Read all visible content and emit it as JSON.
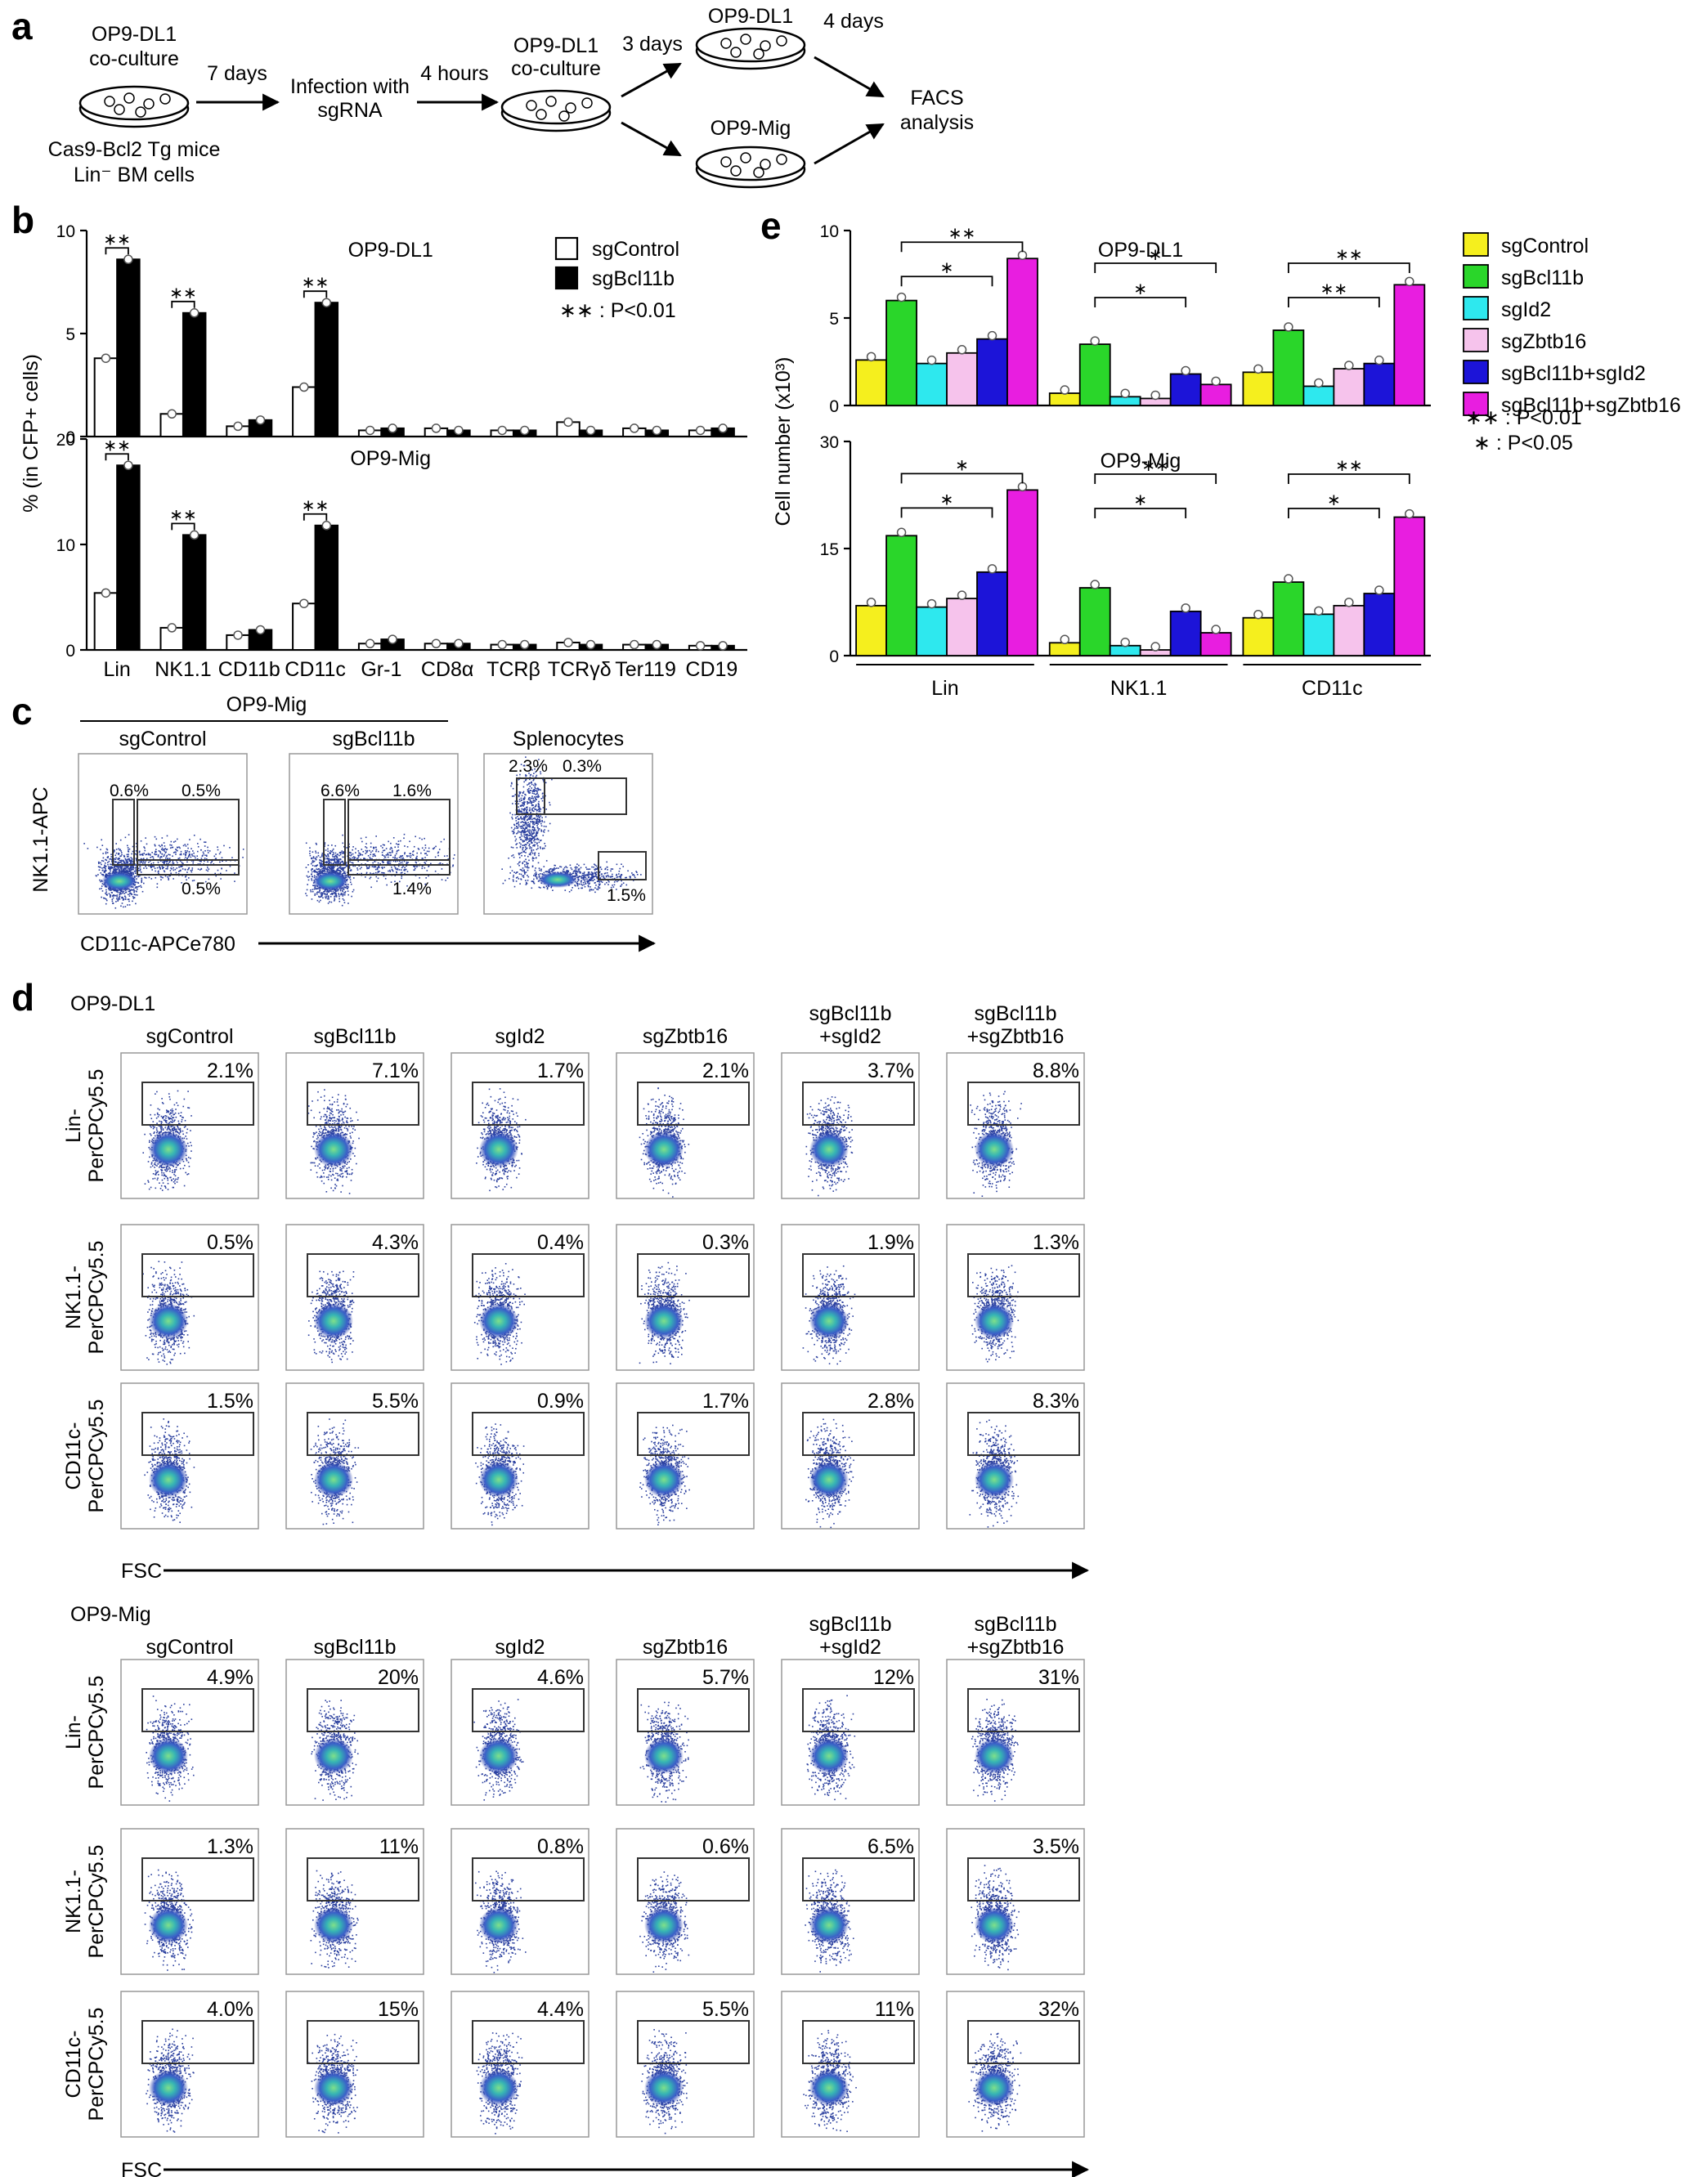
{
  "panel_a": {
    "label": "a",
    "dish1_top": [
      "OP9-DL1",
      "co-culture"
    ],
    "dish1_bottom": [
      "Cas9-Bcl2 Tg mice",
      "Lin⁻ BM cells"
    ],
    "step1": "7 days",
    "step2": [
      "Infection with",
      "sgRNA"
    ],
    "step3": "4 hours",
    "dish2_top": [
      "OP9-DL1",
      "co-culture"
    ],
    "step4": "3 days",
    "dish3_top": "OP9-DL1",
    "step5": "4 days",
    "dish4_top": "OP9-Mig",
    "final": [
      "FACS",
      "analysis"
    ]
  },
  "panel_b": {
    "label": "b",
    "ylabel": "% (in CFP+ cells)",
    "legend": [
      "sgControl",
      "sgBcl11b"
    ],
    "sig_note": "∗∗ : P<0.01",
    "colors": {
      "sgControl": "#ffffff",
      "sgBcl11b": "#000000"
    }
  },
  "panel_c": {
    "label": "c",
    "group_title": "OP9-Mig",
    "plots": [
      {
        "title": "sgControl",
        "percents": [
          "0.6%",
          "0.5%",
          "0.5%"
        ]
      },
      {
        "title": "sgBcl11b",
        "percents": [
          "6.6%",
          "1.6%",
          "1.4%"
        ]
      },
      {
        "title": "Splenocytes",
        "percents": [
          "2.3%",
          "0.3%",
          "1.5%"
        ]
      }
    ],
    "ylabel": "NK1.1-APC",
    "xlabel": "CD11c-APCe780"
  },
  "panel_d": {
    "label": "d",
    "columns": [
      [
        "sgControl"
      ],
      [
        "sgBcl11b"
      ],
      [
        "sgId2"
      ],
      [
        "sgZbtb16"
      ],
      [
        "sgBcl11b",
        "+sgId2"
      ],
      [
        "sgBcl11b",
        "+sgZbtb16"
      ]
    ],
    "row_labels": [
      [
        "Lin-",
        "PerCPCy5.5"
      ],
      [
        "NK1.1-",
        "PerCPCy5.5"
      ],
      [
        "CD11c-",
        "PerCPCy5.5"
      ]
    ],
    "xlabel": "FSC",
    "sections": [
      {
        "title": "OP9-DL1",
        "values": [
          [
            "2.1%",
            "7.1%",
            "1.7%",
            "2.1%",
            "3.7%",
            "8.8%"
          ],
          [
            "0.5%",
            "4.3%",
            "0.4%",
            "0.3%",
            "1.9%",
            "1.3%"
          ],
          [
            "1.5%",
            "5.5%",
            "0.9%",
            "1.7%",
            "2.8%",
            "8.3%"
          ]
        ]
      },
      {
        "title": "OP9-Mig",
        "values": [
          [
            "4.9%",
            "20%",
            "4.6%",
            "5.7%",
            "12%",
            "31%"
          ],
          [
            "1.3%",
            "11%",
            "0.8%",
            "0.6%",
            "6.5%",
            "3.5%"
          ],
          [
            "4.0%",
            "15%",
            "4.4%",
            "5.5%",
            "11%",
            "32%"
          ]
        ]
      }
    ]
  },
  "panel_e": {
    "label": "e",
    "ylabel": "Cell number (x10³)",
    "legend": [
      "sgControl",
      "sgBcl11b",
      "sgId2",
      "sgZbtb16",
      "sgBcl11b+sgId2",
      "sgBcl11b+sgZbtb16"
    ],
    "colors": [
      "#f5ef1e",
      "#2ad62a",
      "#2ee8ee",
      "#f6c3ec",
      "#1c14d8",
      "#e81ee0"
    ],
    "sig_notes": [
      "∗∗ : P<0.01",
      "∗ : P<0.05"
    ]
  },
  "chart_data": [
    {
      "id": "b_top",
      "type": "bar",
      "title": "OP9-DL1",
      "ylabel": "% (in CFP+ cells)",
      "categories": [
        "Lin",
        "NK1.1",
        "CD11b",
        "CD11c",
        "Gr-1",
        "CD8α",
        "TCRβ",
        "TCRγδ",
        "Ter119",
        "CD19"
      ],
      "ylim": [
        0,
        10
      ],
      "yticks": [
        0,
        5,
        10
      ],
      "series": [
        {
          "name": "sgControl",
          "values": [
            3.8,
            1.1,
            0.5,
            2.4,
            0.3,
            0.4,
            0.3,
            0.7,
            0.4,
            0.3
          ]
        },
        {
          "name": "sgBcl11b",
          "values": [
            8.6,
            6.0,
            0.8,
            6.5,
            0.4,
            0.3,
            0.3,
            0.3,
            0.3,
            0.4
          ]
        }
      ],
      "annotations": [
        {
          "category": "Lin",
          "text": "∗∗"
        },
        {
          "category": "NK1.1",
          "text": "∗∗"
        },
        {
          "category": "CD11c",
          "text": "∗∗"
        }
      ]
    },
    {
      "id": "b_bottom",
      "type": "bar",
      "title": "OP9-Mig",
      "ylabel": "% (in CFP+ cells)",
      "categories": [
        "Lin",
        "NK1.1",
        "CD11b",
        "CD11c",
        "Gr-1",
        "CD8α",
        "TCRβ",
        "TCRγδ",
        "Ter119",
        "CD19"
      ],
      "ylim": [
        0,
        20
      ],
      "yticks": [
        0,
        10,
        20
      ],
      "series": [
        {
          "name": "sgControl",
          "values": [
            5.4,
            2.1,
            1.4,
            4.4,
            0.6,
            0.6,
            0.5,
            0.7,
            0.5,
            0.4
          ]
        },
        {
          "name": "sgBcl11b",
          "values": [
            17.5,
            10.9,
            1.9,
            11.8,
            1.0,
            0.6,
            0.5,
            0.5,
            0.5,
            0.4
          ]
        }
      ],
      "annotations": [
        {
          "category": "Lin",
          "text": "∗∗"
        },
        {
          "category": "NK1.1",
          "text": "∗∗"
        },
        {
          "category": "CD11c",
          "text": "∗∗"
        }
      ]
    },
    {
      "id": "e_top",
      "type": "bar",
      "title": "OP9-DL1",
      "ylabel": "Cell number (x10³)",
      "categories": [
        "Lin",
        "NK1.1",
        "CD11c"
      ],
      "ylim": [
        0,
        10
      ],
      "yticks": [
        0,
        5,
        10
      ],
      "series": [
        {
          "name": "sgControl",
          "values": [
            2.6,
            0.7,
            1.9
          ]
        },
        {
          "name": "sgBcl11b",
          "values": [
            6.0,
            3.5,
            4.3
          ]
        },
        {
          "name": "sgId2",
          "values": [
            2.4,
            0.5,
            1.1
          ]
        },
        {
          "name": "sgZbtb16",
          "values": [
            3.0,
            0.4,
            2.1
          ]
        },
        {
          "name": "sgBcl11b+sgId2",
          "values": [
            3.8,
            1.8,
            2.4
          ]
        },
        {
          "name": "sgBcl11b+sgZbtb16",
          "values": [
            8.4,
            1.2,
            6.9
          ]
        }
      ],
      "annotations": [
        {
          "category": "Lin",
          "from": "sgBcl11b",
          "to": "sgBcl11b+sgZbtb16",
          "text": "∗∗"
        },
        {
          "category": "Lin",
          "from": "sgBcl11b",
          "to": "sgBcl11b+sgId2",
          "text": "∗"
        },
        {
          "category": "NK1.1",
          "from": "sgBcl11b",
          "to": "sgBcl11b+sgZbtb16",
          "text": "∗"
        },
        {
          "category": "NK1.1",
          "from": "sgBcl11b",
          "to": "sgBcl11b+sgId2",
          "text": "∗"
        },
        {
          "category": "CD11c",
          "from": "sgBcl11b",
          "to": "sgBcl11b+sgZbtb16",
          "text": "∗∗"
        },
        {
          "category": "CD11c",
          "from": "sgBcl11b",
          "to": "sgBcl11b+sgId2",
          "text": "∗∗"
        }
      ]
    },
    {
      "id": "e_bottom",
      "type": "bar",
      "title": "OP9-Mig",
      "ylabel": "Cell number (x10³)",
      "categories": [
        "Lin",
        "NK1.1",
        "CD11c"
      ],
      "ylim": [
        0,
        30
      ],
      "yticks": [
        0,
        15,
        30
      ],
      "series": [
        {
          "name": "sgControl",
          "values": [
            7.0,
            1.8,
            5.3
          ]
        },
        {
          "name": "sgBcl11b",
          "values": [
            16.8,
            9.5,
            10.3
          ]
        },
        {
          "name": "sgId2",
          "values": [
            6.8,
            1.4,
            5.8
          ]
        },
        {
          "name": "sgZbtb16",
          "values": [
            8.0,
            0.8,
            7.0
          ]
        },
        {
          "name": "sgBcl11b+sgId2",
          "values": [
            11.7,
            6.2,
            8.7
          ]
        },
        {
          "name": "sgBcl11b+sgZbtb16",
          "values": [
            23.2,
            3.2,
            19.4
          ]
        }
      ],
      "annotations": [
        {
          "category": "Lin",
          "from": "sgBcl11b",
          "to": "sgBcl11b+sgZbtb16",
          "text": "∗"
        },
        {
          "category": "Lin",
          "from": "sgBcl11b",
          "to": "sgBcl11b+sgId2",
          "text": "∗"
        },
        {
          "category": "NK1.1",
          "from": "sgBcl11b",
          "to": "sgBcl11b+sgZbtb16",
          "text": "∗∗"
        },
        {
          "category": "NK1.1",
          "from": "sgBcl11b",
          "to": "sgBcl11b+sgId2",
          "text": "∗"
        },
        {
          "category": "CD11c",
          "from": "sgBcl11b",
          "to": "sgBcl11b+sgZbtb16",
          "text": "∗∗"
        },
        {
          "category": "CD11c",
          "from": "sgBcl11b",
          "to": "sgBcl11b+sgId2",
          "text": "∗"
        }
      ]
    }
  ]
}
